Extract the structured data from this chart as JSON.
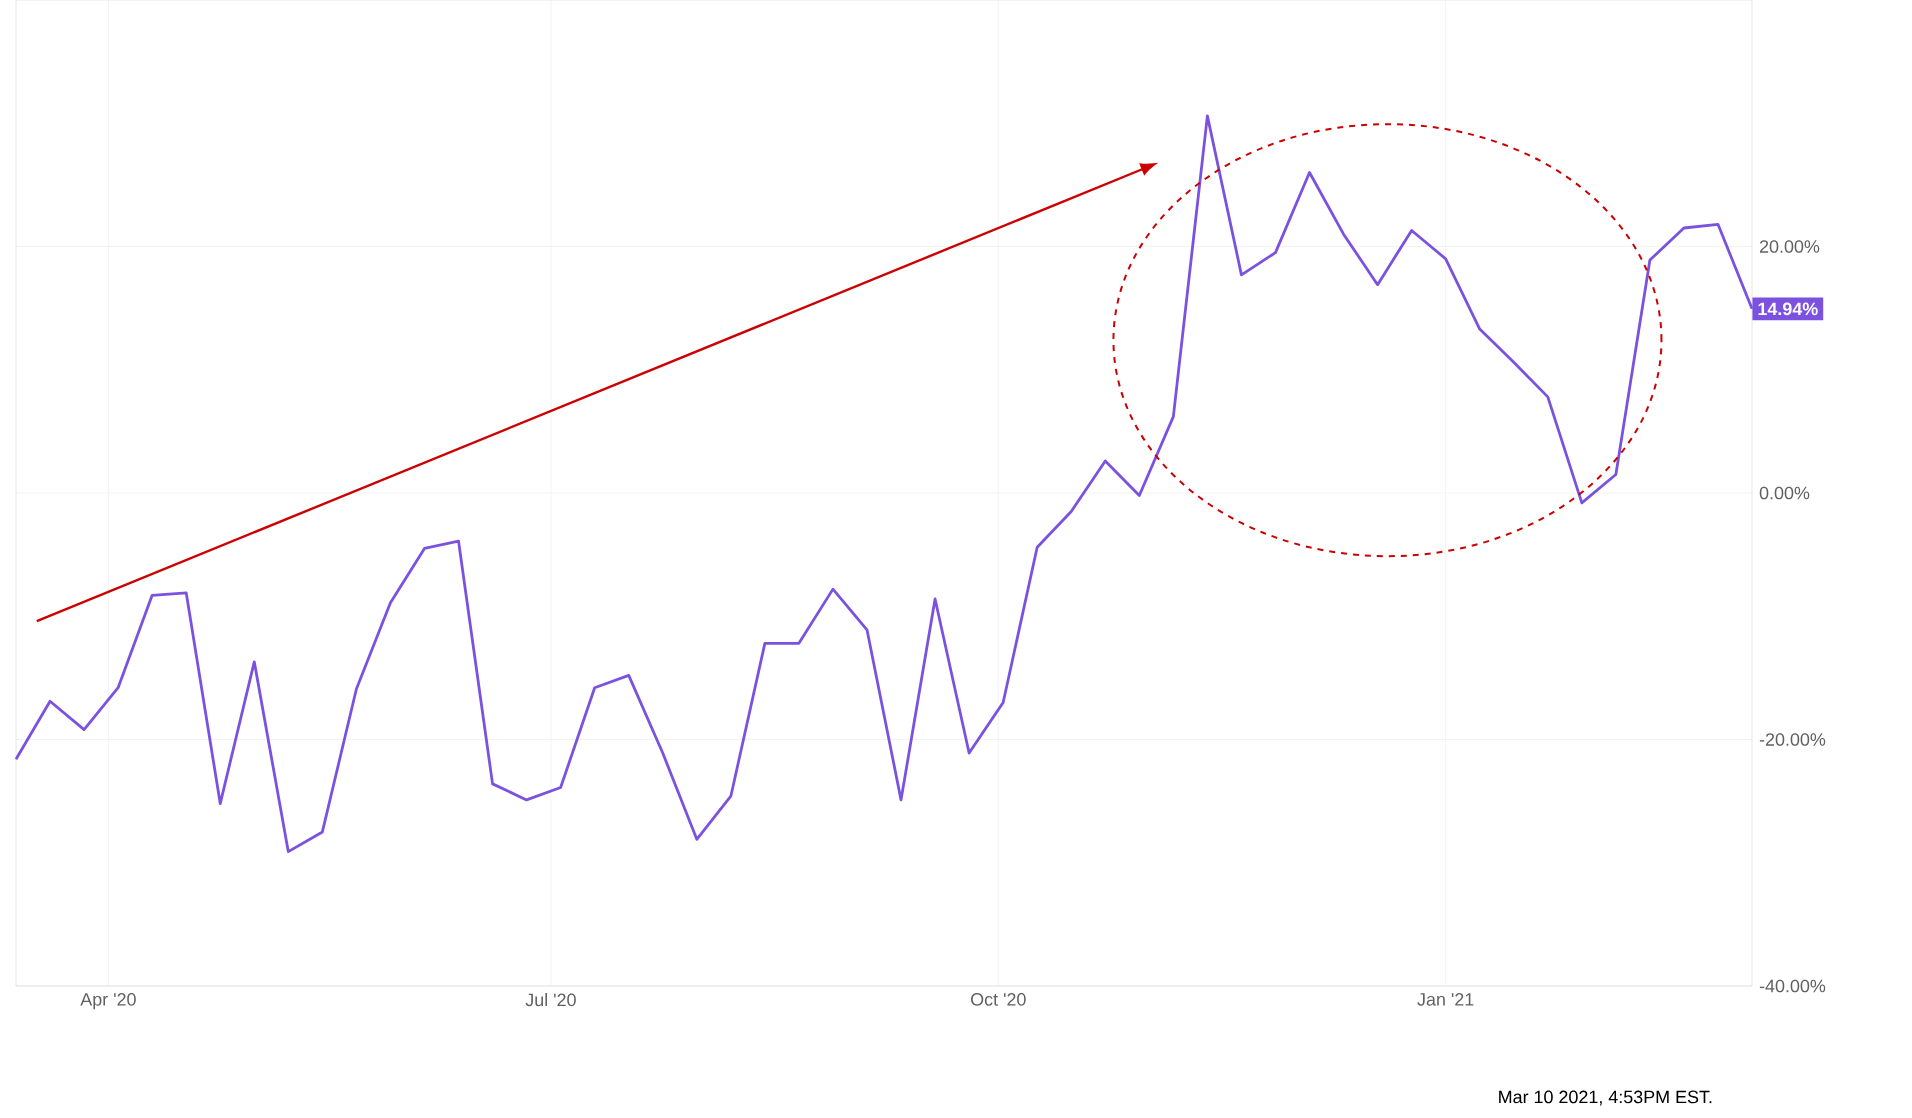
{
  "chart_data": {
    "type": "line",
    "x": [
      "2020-03-13",
      "2020-03-20",
      "2020-03-27",
      "2020-04-03",
      "2020-04-10",
      "2020-04-17",
      "2020-04-24",
      "2020-05-01",
      "2020-05-08",
      "2020-05-15",
      "2020-05-22",
      "2020-05-29",
      "2020-06-05",
      "2020-06-12",
      "2020-06-19",
      "2020-06-26",
      "2020-07-03",
      "2020-07-10",
      "2020-07-17",
      "2020-07-24",
      "2020-07-31",
      "2020-08-07",
      "2020-08-14",
      "2020-08-21",
      "2020-08-28",
      "2020-09-04",
      "2020-09-11",
      "2020-09-18",
      "2020-09-25",
      "2020-10-02",
      "2020-10-09",
      "2020-10-16",
      "2020-10-23",
      "2020-10-30",
      "2020-11-06",
      "2020-11-13",
      "2020-11-20",
      "2020-11-27",
      "2020-12-04",
      "2020-12-11",
      "2020-12-18",
      "2020-12-25",
      "2021-01-01",
      "2021-01-08",
      "2021-01-15",
      "2021-01-22",
      "2021-01-29",
      "2021-02-05",
      "2021-02-12",
      "2021-02-19",
      "2021-02-26",
      "2021-03-05"
    ],
    "series": [
      {
        "color": "#7b52e0",
        "values": [
          -21.6,
          -16.9,
          -19.2,
          -15.8,
          -8.3,
          -8.1,
          -25.2,
          -13.7,
          -29.1,
          -27.5,
          -15.9,
          -8.9,
          -4.5,
          -3.9,
          -23.6,
          -24.9,
          -23.9,
          -15.8,
          -14.8,
          -21.1,
          -28.1,
          -24.6,
          -12.2,
          -12.2,
          -7.8,
          -11.1,
          -24.9,
          -8.6,
          -21.1,
          -17.0,
          -4.4,
          -1.5,
          2.6,
          -0.2,
          6.2,
          30.6,
          17.7,
          19.5,
          26.0,
          21.0,
          16.9,
          21.3,
          19.0,
          13.3,
          10.6,
          7.8,
          -0.8,
          1.5,
          18.9,
          21.5,
          21.8,
          14.94
        ],
        "value_labels": [
          null,
          null,
          null,
          null,
          null,
          null,
          null,
          null,
          null,
          null,
          null,
          null,
          null,
          null,
          null,
          null,
          null,
          null,
          null,
          null,
          null,
          null,
          null,
          null,
          null,
          null,
          null,
          null,
          null,
          null,
          null,
          null,
          null,
          null,
          null,
          null,
          null,
          null,
          null,
          null,
          null,
          null,
          null,
          null,
          null,
          null,
          null,
          null,
          null,
          null,
          null,
          "14.94%"
        ]
      }
    ],
    "xlim": [
      "2020-03-13",
      "2021-03-05"
    ],
    "xticks": [
      {
        "value": "2020-04-01",
        "label": "Apr '20"
      },
      {
        "value": "2020-07-01",
        "label": "Jul '20"
      },
      {
        "value": "2020-10-01",
        "label": "Oct '20"
      },
      {
        "value": "2021-01-01",
        "label": "Jan '21"
      }
    ],
    "ylim": [
      -40,
      40
    ],
    "yticks": [
      {
        "value": -40,
        "label": "-40.00%"
      },
      {
        "value": -20,
        "label": "-20.00%"
      },
      {
        "value": 0,
        "label": "0.00%"
      },
      {
        "value": 20,
        "label": "20.00%"
      }
    ],
    "grid": true,
    "marker": "none",
    "line_style": "solid",
    "annotations": [
      "Mar 10 2021, 4:53PM EST."
    ]
  }
}
